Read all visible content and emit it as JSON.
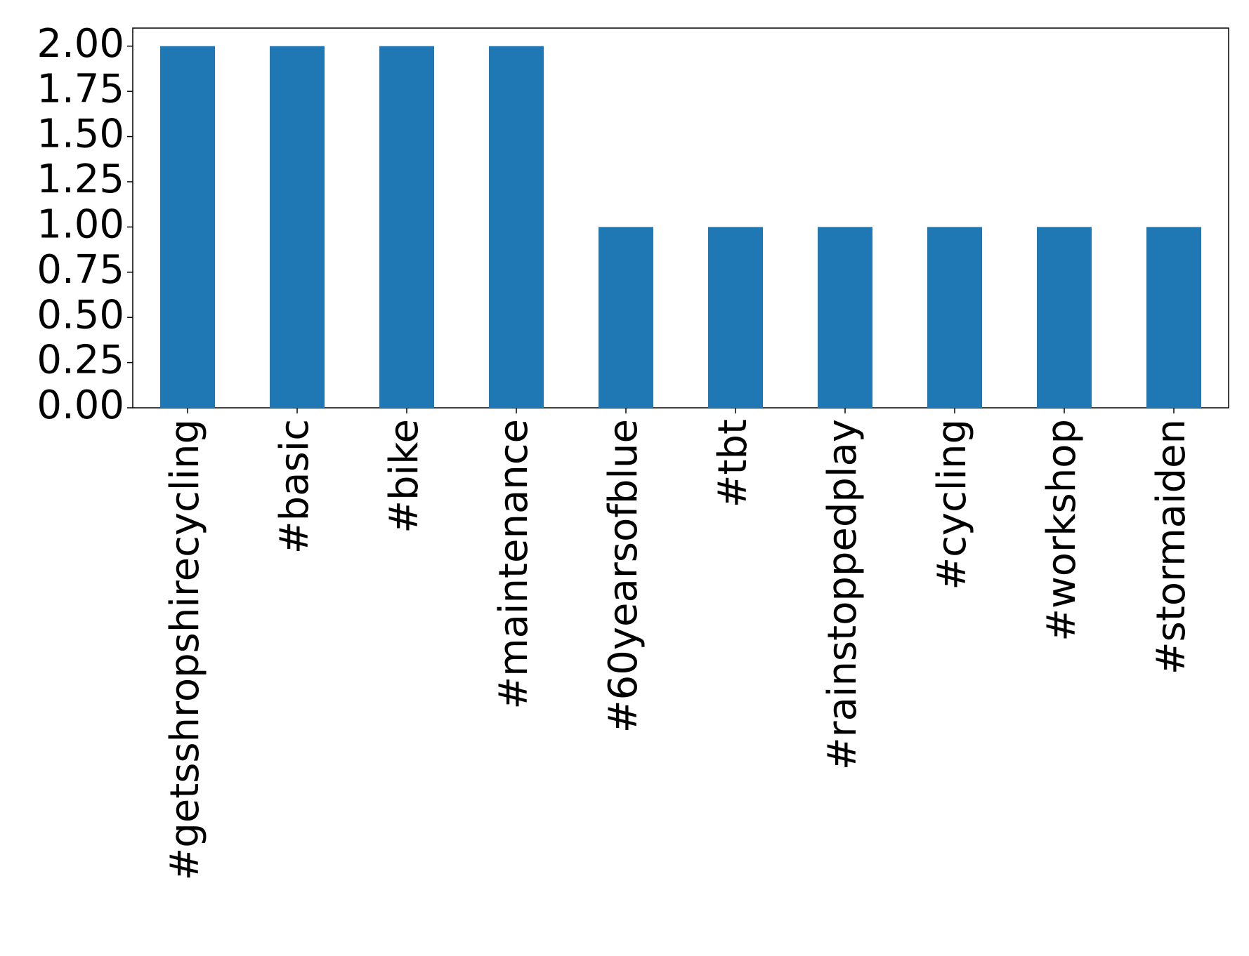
{
  "chart_data": {
    "type": "bar",
    "categories": [
      "#getsshropshirecycling",
      "#basic",
      "#bike",
      "#maintenance",
      "#60yearsofblue",
      "#tbt",
      "#rainstoppedplay",
      "#cycling",
      "#workshop",
      "#stormaiden"
    ],
    "values": [
      2,
      2,
      2,
      2,
      1,
      1,
      1,
      1,
      1,
      1
    ],
    "color": "#1f77b4",
    "ylim": [
      0,
      2.1
    ],
    "yticks": [
      {
        "value": 0,
        "label": "0.00"
      },
      {
        "value": 0.25,
        "label": "0.25"
      },
      {
        "value": 0.5,
        "label": "0.50"
      },
      {
        "value": 0.75,
        "label": "0.75"
      },
      {
        "value": 1,
        "label": "1.00"
      },
      {
        "value": 1.25,
        "label": "1.25"
      },
      {
        "value": 1.5,
        "label": "1.50"
      },
      {
        "value": 1.75,
        "label": "1.75"
      },
      {
        "value": 2,
        "label": "2.00"
      }
    ],
    "grid": false
  }
}
